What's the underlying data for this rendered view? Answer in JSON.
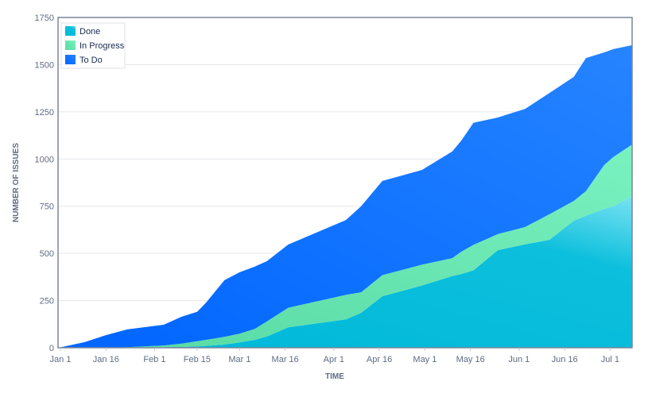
{
  "chart_data": {
    "type": "area",
    "stacked": true,
    "title": "",
    "xlabel": "TIME",
    "ylabel": "NUMBER OF ISSUES",
    "ylim": [
      0,
      1750
    ],
    "xlim": [
      "Jan 1",
      "Jul 8"
    ],
    "yticks": [
      "0",
      "250",
      "500",
      "750",
      "1000",
      "1250",
      "1500",
      "1750"
    ],
    "xticks": [
      "Jan 1",
      "Jan 16",
      "Feb 1",
      "Feb 15",
      "Mar 1",
      "Mar 16",
      "Apr 1",
      "Apr 16",
      "May 1",
      "May 16",
      "Jun 1",
      "Jun 16",
      "Jul 1"
    ],
    "grid": true,
    "legend_position": "top-left",
    "x": [
      "Jan 1",
      "Jan 9",
      "Jan 16",
      "Jan 23",
      "Feb 4",
      "Feb 10",
      "Feb 15",
      "Feb 18",
      "Feb 24",
      "Mar 1",
      "Mar 6",
      "Mar 10",
      "Mar 17",
      "Apr 5",
      "Apr 10",
      "Apr 17",
      "Apr 30",
      "May 10",
      "May 13",
      "May 17",
      "May 25",
      "Jun 3",
      "Jun 11",
      "Jun 19",
      "Jun 23",
      "Jun 29",
      "Jul 2",
      "Jul 8"
    ],
    "series": [
      {
        "name": "Done",
        "color": "#00b8d9",
        "values": [
          0,
          0,
          0,
          0,
          3,
          4,
          7,
          10,
          17,
          28,
          42,
          60,
          108,
          150,
          185,
          273,
          330,
          380,
          391,
          410,
          517,
          548,
          572,
          673,
          700,
          736,
          750,
          803
        ]
      },
      {
        "name": "In Progress",
        "color": "#57d9a3",
        "values": [
          0,
          0,
          0,
          3,
          9,
          18,
          28,
          32,
          41,
          47,
          58,
          80,
          104,
          130,
          109,
          112,
          110,
          95,
          118,
          135,
          85,
          92,
          135,
          105,
          130,
          232,
          260,
          274
        ]
      },
      {
        "name": "To Do",
        "color": "#0065ff",
        "values": [
          0,
          30,
          67,
          94,
          110,
          143,
          155,
          198,
          300,
          325,
          330,
          319,
          335,
          397,
          456,
          499,
          502,
          565,
          589,
          647,
          618,
          626,
          643,
          657,
          705,
          597,
          572,
          526
        ]
      }
    ]
  }
}
